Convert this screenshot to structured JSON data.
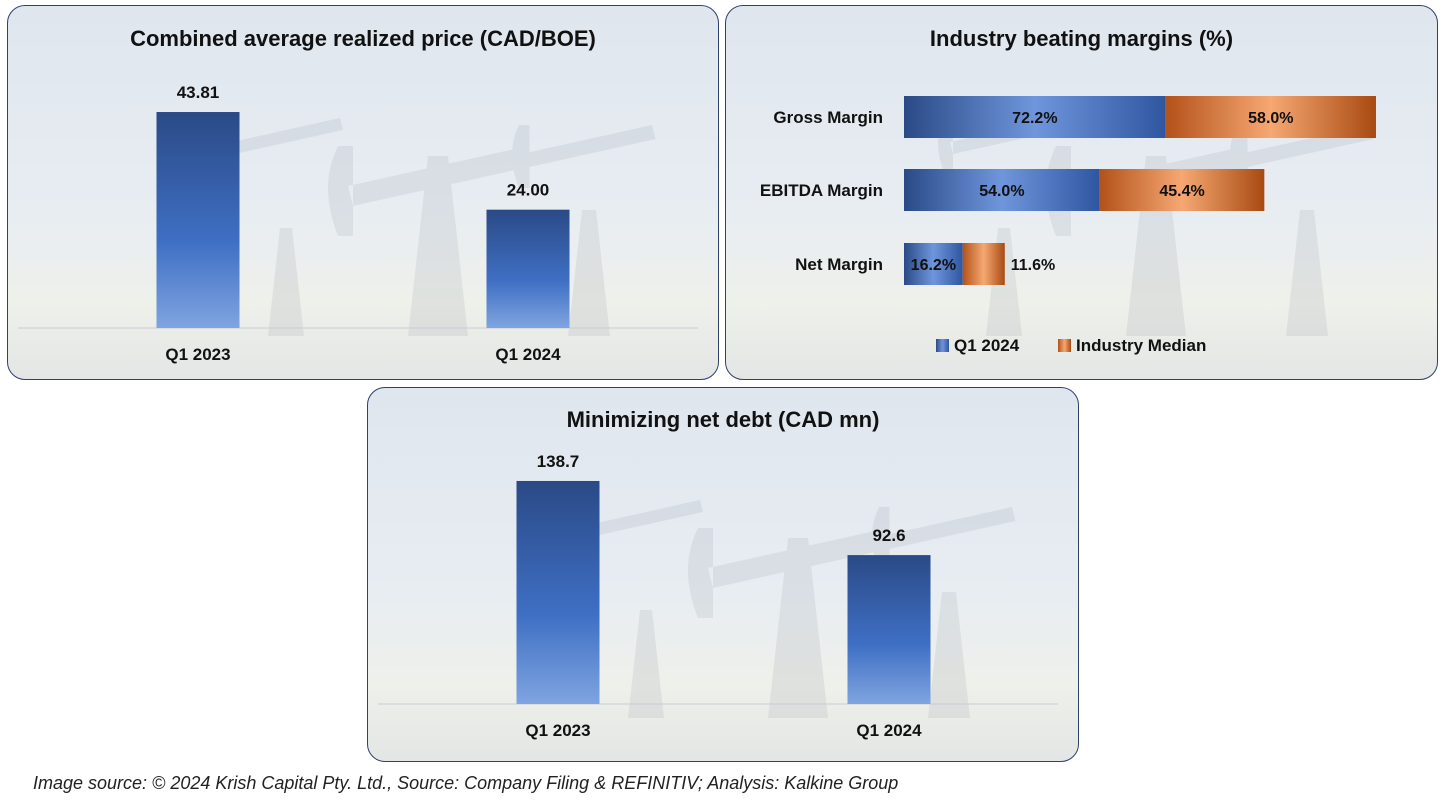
{
  "chart_data": [
    {
      "type": "bar",
      "title": "Combined average realized price (CAD/BOE)",
      "categories": [
        "Q1 2023",
        "Q1 2024"
      ],
      "values": [
        43.81,
        24.0
      ],
      "labels": [
        "43.81",
        "24.00"
      ],
      "ylim": [
        0,
        48
      ],
      "grid": false
    },
    {
      "type": "bar",
      "orientation": "horizontal",
      "stacked": true,
      "title": "Industry beating margins (%)",
      "categories": [
        "Gross Margin",
        "EBITDA Margin",
        "Net Margin"
      ],
      "series": [
        {
          "name": "Q1 2024",
          "values": [
            72.2,
            54.0,
            16.2
          ],
          "labels": [
            "72.2%",
            "54.0%",
            "16.2%"
          ],
          "color": "#3f6fc4"
        },
        {
          "name": "Industry Median",
          "values": [
            58.0,
            45.4,
            11.6
          ],
          "labels": [
            "58.0%",
            "45.4%",
            "11.6%"
          ],
          "color": "#e07a2e"
        }
      ],
      "legend": "bottom"
    },
    {
      "type": "bar",
      "title": "Minimizing net debt (CAD mn)",
      "categories": [
        "Q1 2023",
        "Q1 2024"
      ],
      "values": [
        138.7,
        92.6
      ],
      "labels": [
        "138.7",
        "92.6"
      ],
      "ylim": [
        0,
        152
      ],
      "grid": false
    }
  ],
  "footer": "Image source: © 2024 Krish Capital Pty. Ltd., Source: Company Filing & REFINITIV; Analysis: Kalkine Group"
}
